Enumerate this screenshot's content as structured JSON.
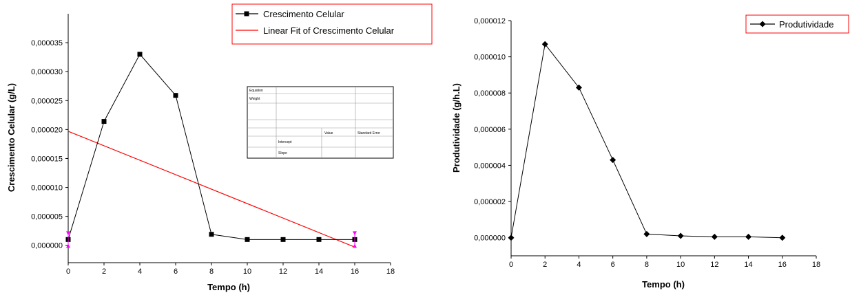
{
  "chart_data": [
    {
      "type": "scatter",
      "xlabel": "Tempo (h)",
      "ylabel": "Crescimento Celular (g/L)",
      "xlim": [
        0,
        18
      ],
      "ylim": [
        -3e-06,
        4e-05
      ],
      "xticks": [
        0,
        2,
        4,
        6,
        8,
        10,
        12,
        14,
        16,
        18
      ],
      "yticks": [
        0,
        5e-06,
        1e-05,
        1.5e-05,
        2e-05,
        2.5e-05,
        3e-05,
        3.5e-05
      ],
      "ytick_labels": [
        "0,000000",
        "0,000005",
        "0,000010",
        "0,000015",
        "0,000020",
        "0,000025",
        "0,000030",
        "0,000035"
      ],
      "legend_position": "top-right",
      "grid": false,
      "series": [
        {
          "name": "Crescimento Celular",
          "kind": "line-markers",
          "marker": "square",
          "line_color": "#000000",
          "marker_color": "#000000",
          "x": [
            0,
            2,
            4,
            6,
            8,
            10,
            12,
            14,
            16
          ],
          "y": [
            1e-06,
            2.14e-05,
            3.3e-05,
            2.59e-05,
            1.9e-06,
            1e-06,
            1e-06,
            1e-06,
            1e-06
          ]
        },
        {
          "name": "Linear Fit of Crescimento Celular",
          "kind": "line",
          "line_color": "#ff0000",
          "x": [
            0,
            16
          ],
          "y": [
            1.97e-05,
            -3e-07
          ]
        }
      ],
      "fit_table": {
        "rows": [
          [
            "Equation",
            "",
            "",
            ""
          ],
          [
            "Weight",
            "",
            "",
            ""
          ],
          [
            "",
            "",
            "",
            ""
          ],
          [
            "",
            "",
            "",
            ""
          ],
          [
            "",
            "",
            "Value",
            "Standard Error"
          ],
          [
            "",
            "Intercept",
            "",
            ""
          ],
          [
            "",
            "Slope",
            "",
            ""
          ]
        ]
      }
    },
    {
      "type": "line",
      "xlabel": "Tempo (h)",
      "ylabel": "Produtividade (g/h.L)",
      "xlim": [
        0,
        18
      ],
      "ylim": [
        -1e-06,
        1.2e-05
      ],
      "xticks": [
        0,
        2,
        4,
        6,
        8,
        10,
        12,
        14,
        16,
        18
      ],
      "yticks": [
        0,
        2e-06,
        4e-06,
        6e-06,
        8e-06,
        1e-05,
        1.2e-05
      ],
      "ytick_labels": [
        "0,000000",
        "0,000002",
        "0,000004",
        "0,000006",
        "0,000008",
        "0,000010",
        "0,000012"
      ],
      "legend_position": "top-right",
      "grid": false,
      "series": [
        {
          "name": "Produtividade",
          "kind": "line-markers",
          "marker": "diamond",
          "line_color": "#000000",
          "marker_color": "#000000",
          "x": [
            0,
            2,
            4,
            6,
            8,
            10,
            12,
            14,
            16
          ],
          "y": [
            0,
            1.07e-05,
            8.3e-06,
            4.3e-06,
            2e-07,
            1e-07,
            5e-08,
            5e-08,
            0.0
          ]
        }
      ]
    }
  ]
}
